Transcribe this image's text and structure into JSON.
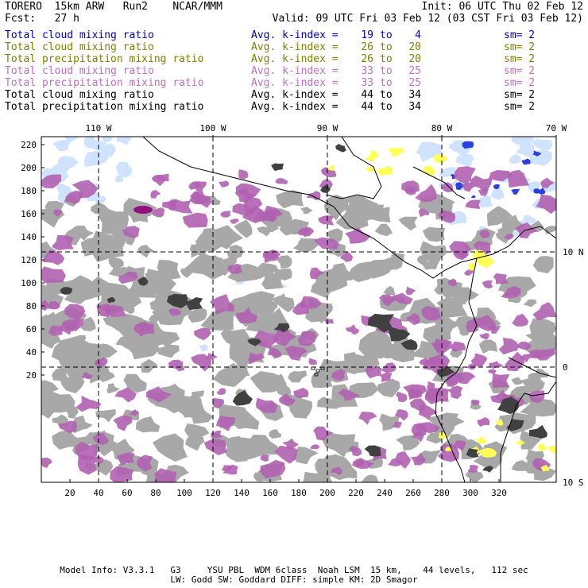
{
  "header": {
    "model": "TORERO  15km ARW   Run2    NCAR/MMM",
    "init": "Init: 06 UTC Thu 02 Feb 12",
    "fcst": "Fcst:   27 h",
    "valid": "Valid: 09 UTC Fri 03 Feb 12 (03 CST Fri 03 Feb 12)"
  },
  "legend": [
    {
      "field": "Total cloud mixing ratio",
      "kindex": "Avg. k-index =",
      "hi": "19",
      "to": "to",
      "lo": "4",
      "sm": "sm= 2",
      "color": "#0000cc"
    },
    {
      "field": "Total cloud mixing ratio",
      "kindex": "Avg. k-index =",
      "hi": "26",
      "to": "to",
      "lo": "20",
      "sm": "sm= 2",
      "color": "#808000"
    },
    {
      "field": "Total precipitation mixing ratio",
      "kindex": "Avg. k-index =",
      "hi": "26",
      "to": "to",
      "lo": "20",
      "sm": "sm= 2",
      "color": "#808000"
    },
    {
      "field": "Total cloud mixing ratio",
      "kindex": "Avg. k-index =",
      "hi": "33",
      "to": "to",
      "lo": "25",
      "sm": "sm= 2",
      "color": "#c070c0"
    },
    {
      "field": "Total precipitation mixing ratio",
      "kindex": "Avg. k-index =",
      "hi": "33",
      "to": "to",
      "lo": "25",
      "sm": "sm= 2",
      "color": "#c070c0"
    },
    {
      "field": "Total cloud mixing ratio",
      "kindex": "Avg. k-index =",
      "hi": "44",
      "to": "to",
      "lo": "34",
      "sm": "sm= 2",
      "color": "#000000"
    },
    {
      "field": "Total precipitation mixing ratio",
      "kindex": "Avg. k-index =",
      "hi": "44",
      "to": "to",
      "lo": "34",
      "sm": "sm= 2",
      "color": "#000000"
    }
  ],
  "map": {
    "lon_labels": [
      "110 W",
      "100 W",
      "90 W",
      "80 W",
      "70 W"
    ],
    "lat_labels": [
      "10 N",
      "0",
      "10 S"
    ],
    "y_ticks": [
      "220",
      "200",
      "180",
      "160",
      "140",
      "120",
      "100",
      "80",
      "60",
      "40",
      "20"
    ],
    "x_ticks": [
      "20",
      "40",
      "60",
      "80",
      "100",
      "120",
      "140",
      "160",
      "180",
      "200",
      "220",
      "240",
      "260",
      "280",
      "300",
      "320"
    ],
    "colors": {
      "light_blue": "#cfe3ff",
      "blue": "#2b3fe0",
      "yellow": "#ffff55",
      "magenta": "#b060b0",
      "gray": "#a8a8a8",
      "dark": "#404040"
    }
  },
  "footer": {
    "line1": "Model Info: V3.3.1   G3     YSU PBL  WDM 6class  Noah LSM  15 km,    44 levels,   112 sec",
    "line2": "LW: Godd SW: Goddard DIFF: simple KM: 2D Smagor"
  }
}
